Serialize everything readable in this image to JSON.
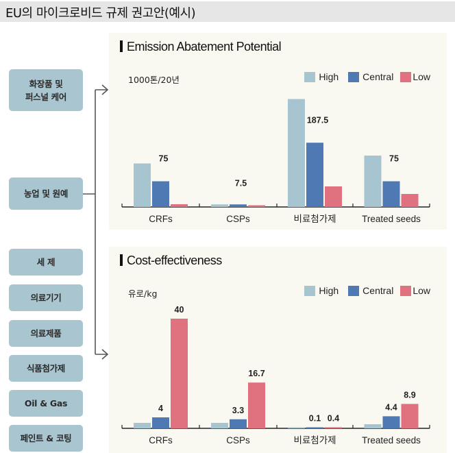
{
  "page": {
    "title": "EU의 마이크로비드 규제 권고안(예시)"
  },
  "categories_sidebar": [
    {
      "label_lines": [
        "화장품 및",
        "퍼스널 케어"
      ]
    },
    {
      "label_lines": [
        "농업 및 원예"
      ]
    },
    {
      "label_lines": [
        "세  제"
      ]
    },
    {
      "label_lines": [
        "의료기기"
      ]
    },
    {
      "label_lines": [
        "의료제품"
      ]
    },
    {
      "label_lines": [
        "식품첨가제"
      ]
    },
    {
      "label_lines": [
        "Oil & Gas"
      ]
    },
    {
      "label_lines": [
        "페인트 & 코팅"
      ]
    }
  ],
  "colors": {
    "high": "#a7c5d1",
    "central": "#4e79b3",
    "low": "#e07280",
    "panel_bg": "#f9f8f1",
    "box_bg": "#a9c5cf"
  },
  "chart_data": [
    {
      "type": "bar",
      "title": "Emission Abatement Potential",
      "ylabel": "1000톤/20년",
      "xlabel": "",
      "categories": [
        "CRFs",
        "CSPs",
        "비료첨가제",
        "Treated seeds"
      ],
      "series": [
        {
          "name": "High",
          "values": [
            127,
            7.5,
            315,
            150
          ]
        },
        {
          "name": "Central",
          "values": [
            75,
            7.5,
            187.5,
            75
          ]
        },
        {
          "name": "Low",
          "values": [
            8,
            5,
            60,
            38
          ]
        }
      ],
      "data_labels": [
        {
          "category": "CRFs",
          "series": "Central",
          "text": "75"
        },
        {
          "category": "CSPs",
          "series": "Central",
          "text": "7.5"
        },
        {
          "category": "비료첨가제",
          "series": "Central",
          "text": "187.5"
        },
        {
          "category": "Treated seeds",
          "series": "Central",
          "text": "75"
        }
      ],
      "ylim": [
        0,
        320
      ],
      "grid": false,
      "legend": {
        "position": "top-right",
        "entries": [
          "High",
          "Central",
          "Low"
        ]
      }
    },
    {
      "type": "bar",
      "title": "Cost-effectiveness",
      "ylabel": "유로/kg",
      "xlabel": "",
      "categories": [
        "CRFs",
        "CSPs",
        "비료첨가제",
        "Treated seeds"
      ],
      "series": [
        {
          "name": "High",
          "values": [
            2,
            2,
            0.1,
            1.5
          ]
        },
        {
          "name": "Central",
          "values": [
            4,
            3.3,
            0.1,
            4.4
          ]
        },
        {
          "name": "Low",
          "values": [
            40,
            16.7,
            0.4,
            8.9
          ]
        }
      ],
      "data_labels": [
        {
          "category": "CRFs",
          "series": "Central",
          "text": "4"
        },
        {
          "category": "CRFs",
          "series": "Low",
          "text": "40"
        },
        {
          "category": "CSPs",
          "series": "Central",
          "text": "3.3"
        },
        {
          "category": "CSPs",
          "series": "Low",
          "text": "16.7"
        },
        {
          "category": "비료첨가제",
          "series": "Central",
          "text": "0.1"
        },
        {
          "category": "비료첨가제",
          "series": "Low",
          "text": "0.4"
        },
        {
          "category": "Treated seeds",
          "series": "Central",
          "text": "4.4"
        },
        {
          "category": "Treated seeds",
          "series": "Low",
          "text": "8.9"
        }
      ],
      "ylim": [
        0,
        41
      ],
      "grid": false,
      "legend": {
        "position": "top-right",
        "entries": [
          "High",
          "Central",
          "Low"
        ]
      }
    }
  ]
}
